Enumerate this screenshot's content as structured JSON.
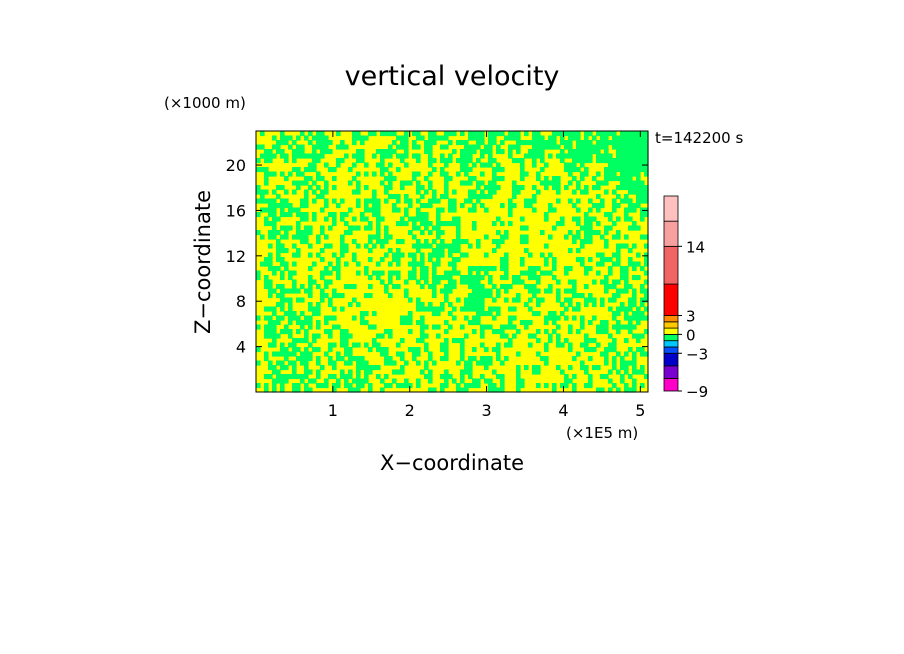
{
  "chart_data": {
    "type": "heatmap",
    "title": "vertical velocity",
    "time_label": "t=142200 s",
    "xlabel": "X−coordinate",
    "ylabel": "Z−coordinate",
    "x_unit": "(×1E5 m)",
    "y_unit": "(×1000 m)",
    "x_ticks": [
      "1",
      "2",
      "3",
      "4",
      "5"
    ],
    "y_ticks": [
      "4",
      "8",
      "12",
      "16",
      "20"
    ],
    "x_tick_values": [
      1,
      2,
      3,
      4,
      5
    ],
    "y_tick_values": [
      4,
      8,
      12,
      16,
      20
    ],
    "xlim": [
      0,
      5.1
    ],
    "ylim": [
      0,
      23
    ],
    "field_colors": {
      "positive": "#ffff00",
      "negative": "#00ff60"
    },
    "colorbar": {
      "tick_labels": [
        "14",
        "3",
        "0",
        "−3",
        "−9"
      ],
      "tick_values": [
        14,
        3,
        0,
        -3,
        -9
      ],
      "levels": [
        {
          "from": -9,
          "to": -7,
          "color": "#ff00c8"
        },
        {
          "from": -7,
          "to": -5,
          "color": "#7a00d0"
        },
        {
          "from": -5,
          "to": -3,
          "color": "#0000c8"
        },
        {
          "from": -3,
          "to": -2,
          "color": "#0050ff"
        },
        {
          "from": -2,
          "to": -1,
          "color": "#00c8ff"
        },
        {
          "from": -1,
          "to": 0,
          "color": "#00ff60"
        },
        {
          "from": 0,
          "to": 1,
          "color": "#ffff00"
        },
        {
          "from": 1,
          "to": 2,
          "color": "#ffc800"
        },
        {
          "from": 2,
          "to": 3,
          "color": "#ff8c00"
        },
        {
          "from": 3,
          "to": 8,
          "color": "#ff0000"
        },
        {
          "from": 8,
          "to": 14,
          "color": "#f06464"
        },
        {
          "from": 14,
          "to": 18,
          "color": "#f8a0a0"
        },
        {
          "from": 18,
          "to": 22,
          "color": "#ffc0c0"
        }
      ]
    }
  }
}
